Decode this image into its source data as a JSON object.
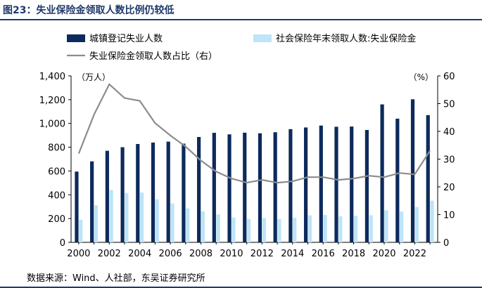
{
  "title": "图23：失业保险金领取人数比例仍较低",
  "source": "数据来源：Wind、人社部，东吴证券研究所",
  "chart_data": {
    "type": "bar",
    "x": [
      "2000",
      "2001",
      "2002",
      "2003",
      "2004",
      "2005",
      "2006",
      "2007",
      "2008",
      "2009",
      "2010",
      "2011",
      "2012",
      "2013",
      "2014",
      "2015",
      "2016",
      "2017",
      "2018",
      "2019",
      "2020",
      "2021",
      "2022",
      "2023"
    ],
    "x_tick_labels": [
      "2000",
      "2002",
      "2004",
      "2006",
      "2008",
      "2010",
      "2012",
      "2014",
      "2016",
      "2018",
      "2020",
      "2022"
    ],
    "series": [
      {
        "name": "城镇登记失业人数",
        "type": "bar",
        "axis": "left",
        "color": "#0d2a5c",
        "values": [
          595,
          681,
          770,
          800,
          827,
          839,
          847,
          830,
          886,
          921,
          908,
          922,
          917,
          926,
          952,
          966,
          982,
          972,
          974,
          945,
          1160,
          1040,
          1203,
          1070
        ]
      },
      {
        "name": "社会保险年末领取人数:失业保险金",
        "type": "bar",
        "axis": "left",
        "color": "#bde4f7",
        "values": [
          190,
          312,
          440,
          415,
          419,
          362,
          327,
          286,
          261,
          235,
          209,
          197,
          204,
          197,
          207,
          227,
          230,
          220,
          223,
          228,
          270,
          259,
          297,
          350
        ]
      },
      {
        "name": "失业保险金领取人数占比（右）",
        "type": "line",
        "axis": "right",
        "color": "#8c8c8c",
        "values": [
          32,
          46,
          57,
          52,
          51,
          43,
          38.5,
          34.5,
          29.5,
          25.5,
          23,
          21.5,
          22.5,
          21.5,
          22,
          23.5,
          23.5,
          22.5,
          23,
          24,
          23.5,
          25,
          24.5,
          33
        ]
      }
    ],
    "y_left": {
      "unit": "（万人）",
      "min": 0,
      "max": 1400,
      "ticks": [
        "0",
        "200",
        "400",
        "600",
        "800",
        "1,000",
        "1,200",
        "1,400"
      ]
    },
    "y_right": {
      "unit": "（%）",
      "min": 0,
      "max": 60,
      "ticks": [
        "0",
        "10",
        "20",
        "30",
        "40",
        "50",
        "60"
      ]
    },
    "grid": false,
    "legend_position": "top"
  }
}
